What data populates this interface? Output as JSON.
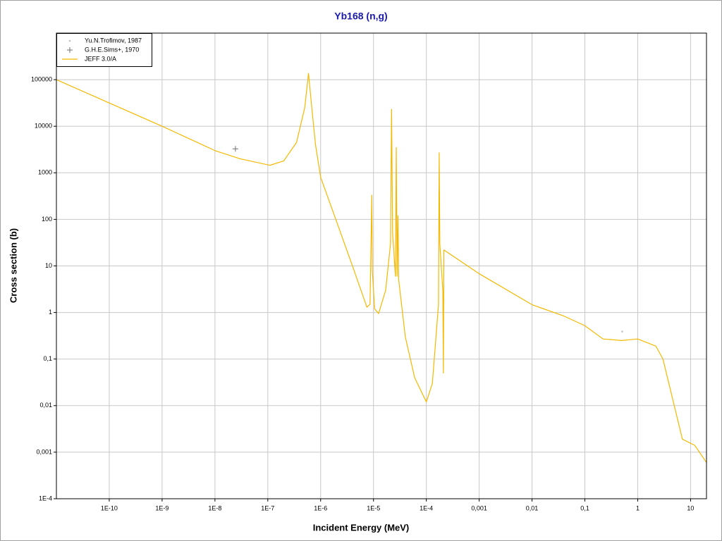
{
  "chart_data": {
    "type": "line",
    "title": "Yb168 (n,g)",
    "x_label": "Incident Energy (MeV)",
    "y_label": "Cross section (b)",
    "log_x": true,
    "log_y": true,
    "grid": true,
    "legend": "upper left",
    "xlim": [
      1e-11,
      20
    ],
    "ylim": [
      0.0001,
      1000000
    ],
    "xticks": [
      {
        "value": 1e-10,
        "label": "1E-10"
      },
      {
        "value": 1e-09,
        "label": "1E-9"
      },
      {
        "value": 1e-08,
        "label": "1E-8"
      },
      {
        "value": 1e-07,
        "label": "1E-7"
      },
      {
        "value": 1e-06,
        "label": "1E-6"
      },
      {
        "value": 1e-05,
        "label": "1E-5"
      },
      {
        "value": 0.0001,
        "label": "1E-4"
      },
      {
        "value": 0.001,
        "label": "0,001"
      },
      {
        "value": 0.01,
        "label": "0,01"
      },
      {
        "value": 0.1,
        "label": "0,1"
      },
      1,
      10
    ],
    "yticks": [
      {
        "value": 0.0001,
        "label": "1E-4"
      },
      {
        "value": 0.001,
        "label": "0,001"
      },
      {
        "value": 0.01,
        "label": "0,01"
      },
      {
        "value": 0.1,
        "label": "0,1"
      },
      1,
      10,
      100,
      1000,
      10000,
      100000
    ],
    "series": [
      {
        "name": "Yu.N.Trofimov, 1987",
        "type": "scatter",
        "marker": "dot",
        "color": "#c0c0c0",
        "x": [
          0.51
        ],
        "values": [
          0.39
        ]
      },
      {
        "name": "G.H.E.Sims+, 1970",
        "type": "scatter",
        "marker": "plus",
        "color": "#707070",
        "x": [
          2.44e-08
        ],
        "values": [
          3270
        ]
      },
      {
        "name": "JEFF 3.0/A",
        "type": "line",
        "color": "#f5b800",
        "x": [
          1e-11,
          1e-10,
          1e-09,
          1e-08,
          3e-08,
          1.1e-07,
          2e-07,
          3.5e-07,
          5e-07,
          5.9e-07,
          6.8e-07,
          8e-07,
          1e-06,
          2e-06,
          4e-06,
          7.5e-06,
          8.6e-06,
          9.3e-06,
          9.5e-06,
          1.05e-05,
          1.25e-05,
          1.7e-05,
          2.1e-05,
          2.2e-05,
          2.3e-05,
          2.6e-05,
          2.7e-05,
          2.8e-05,
          2.9e-05,
          3e-05,
          4e-05,
          6e-05,
          0.0001,
          0.00013,
          0.00017,
          0.000175,
          0.00018,
          0.000205,
          0.00021,
          0.000215,
          0.001,
          0.01,
          0.04,
          0.1,
          0.22,
          0.5,
          1,
          2.2,
          3,
          7,
          12,
          20
        ],
        "values": [
          100000,
          31600,
          10000,
          3000,
          2000,
          1450,
          1800,
          4500,
          25000,
          137000,
          25000,
          4000,
          800,
          90,
          10,
          1.3,
          1.5,
          330,
          8,
          1.2,
          0.95,
          3,
          30,
          23000,
          50,
          6,
          3500,
          6,
          120,
          5,
          0.3,
          0.04,
          0.012,
          0.03,
          1.5,
          2700,
          30,
          3,
          0.05,
          22,
          6.8,
          1.47,
          0.84,
          0.52,
          0.27,
          0.25,
          0.27,
          0.19,
          0.1,
          0.0019,
          0.0014,
          0.0006
        ]
      }
    ]
  }
}
